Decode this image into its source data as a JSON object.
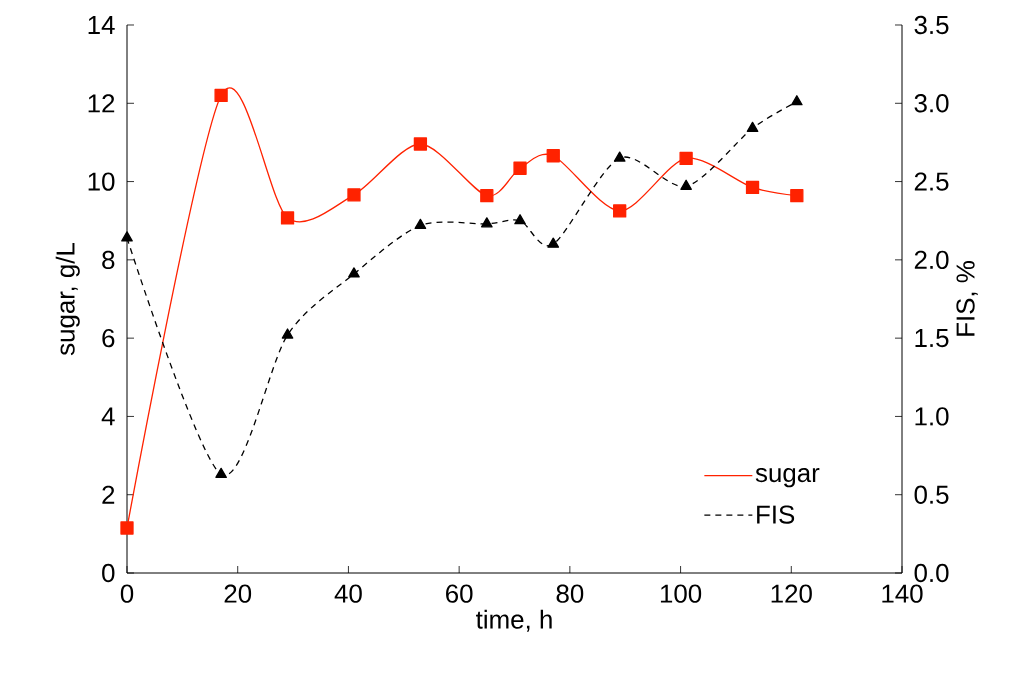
{
  "chart_data": {
    "type": "line",
    "xlabel": "time, h",
    "ylabel": "sugar, g/L",
    "y2label": "FIS, %",
    "x": [
      0,
      17,
      29,
      41,
      53,
      65,
      71,
      77,
      89,
      101,
      113,
      121
    ],
    "series": [
      {
        "name": "sugar",
        "color": "#ff2200",
        "marker": "square",
        "line_style": "solid",
        "values": [
          1.15,
          12.2,
          9.07,
          9.66,
          10.96,
          9.64,
          10.34,
          10.66,
          9.25,
          10.59,
          9.85,
          9.64
        ]
      },
      {
        "name": "FIS",
        "color": "#000000",
        "marker": "triangle",
        "line_style": "dashed",
        "axis": "y2",
        "values": [
          2.14,
          0.63,
          1.52,
          1.91,
          2.22,
          2.23,
          2.25,
          2.1,
          2.65,
          2.47,
          2.84,
          3.01
        ]
      }
    ],
    "xlim": [
      0,
      140
    ],
    "xticks": [
      0,
      20,
      40,
      60,
      80,
      100,
      120,
      140
    ],
    "ylim": [
      0,
      14
    ],
    "yticks": [
      0,
      2,
      4,
      6,
      8,
      10,
      12,
      14
    ],
    "y2lim": [
      0,
      3.5
    ],
    "y2ticks": [
      {
        "value": 0,
        "label": "0.0"
      },
      {
        "value": 0.5,
        "label": "0.5"
      },
      {
        "value": 1,
        "label": "1.0"
      },
      {
        "value": 1.5,
        "label": "1.5"
      },
      {
        "value": 2,
        "label": "2.0"
      },
      {
        "value": 2.5,
        "label": "2.5"
      },
      {
        "value": 3,
        "label": "3.0"
      },
      {
        "value": 3.5,
        "label": "3.5"
      }
    ],
    "grid": false,
    "legend": "bottom right"
  }
}
